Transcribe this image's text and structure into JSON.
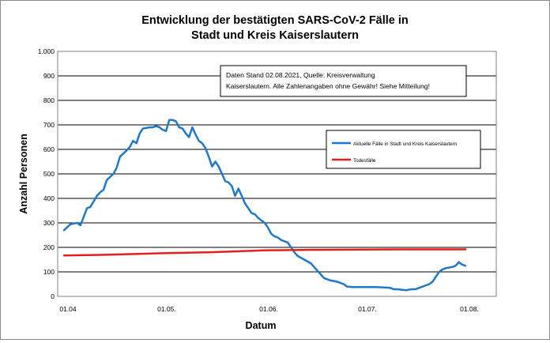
{
  "chart_data": {
    "type": "line",
    "title_lines": [
      "Entwicklung der bestätigten SARS-CoV-2 Fälle in",
      "Stadt und Kreis Kaiserslautern"
    ],
    "xlabel": "Datum",
    "ylabel": "Anzahl Personen",
    "x_start": "2021-04-01",
    "x_end": "2021-08-01",
    "x_ticks": [
      {
        "date": "2021-04-01",
        "label": "01.04"
      },
      {
        "date": "2021-05-01",
        "label": "01.05."
      },
      {
        "date": "2021-06-01",
        "label": "01.06."
      },
      {
        "date": "2021-07-01",
        "label": "01.07."
      },
      {
        "date": "2021-08-01",
        "label": "01.08."
      }
    ],
    "ylim": [
      0,
      1000
    ],
    "y_ticks": [
      {
        "value": 0,
        "label": "0"
      },
      {
        "value": 100,
        "label": "100"
      },
      {
        "value": 200,
        "label": "200"
      },
      {
        "value": 300,
        "label": "300"
      },
      {
        "value": 400,
        "label": "400"
      },
      {
        "value": 500,
        "label": "500"
      },
      {
        "value": 600,
        "label": "600"
      },
      {
        "value": 700,
        "label": "700"
      },
      {
        "value": 800,
        "label": "800"
      },
      {
        "value": 900,
        "label": "900"
      },
      {
        "value": 1000,
        "label": "1.000"
      }
    ],
    "grid": "horizontal",
    "legend_position": "right",
    "annotation_lines": [
      "Daten Stand 02.08.2021, Quelle: Kreisverwaltung",
      "Kaiserslautern. Alle Zahlenangaben ohne Gewähr! Siehe Mitteilung!"
    ],
    "series": [
      {
        "name": "Aktuelle Fälle in Stadt und Kreis Kaiserslautern",
        "color": "#1f78c8",
        "points": [
          [
            "2021-04-01",
            270
          ],
          [
            "2021-04-03",
            295
          ],
          [
            "2021-04-05",
            300
          ],
          [
            "2021-04-06",
            290
          ],
          [
            "2021-04-08",
            360
          ],
          [
            "2021-04-09",
            365
          ],
          [
            "2021-04-11",
            410
          ],
          [
            "2021-04-12",
            425
          ],
          [
            "2021-04-13",
            435
          ],
          [
            "2021-04-14",
            475
          ],
          [
            "2021-04-16",
            500
          ],
          [
            "2021-04-17",
            525
          ],
          [
            "2021-04-18",
            570
          ],
          [
            "2021-04-20",
            595
          ],
          [
            "2021-04-21",
            610
          ],
          [
            "2021-04-22",
            635
          ],
          [
            "2021-04-23",
            625
          ],
          [
            "2021-04-24",
            665
          ],
          [
            "2021-04-25",
            685
          ],
          [
            "2021-04-27",
            690
          ],
          [
            "2021-04-28",
            690
          ],
          [
            "2021-04-29",
            695
          ],
          [
            "2021-04-30",
            690
          ],
          [
            "2021-05-01",
            680
          ],
          [
            "2021-05-02",
            675
          ],
          [
            "2021-05-03",
            720
          ],
          [
            "2021-05-04",
            720
          ],
          [
            "2021-05-05",
            715
          ],
          [
            "2021-05-06",
            690
          ],
          [
            "2021-05-07",
            685
          ],
          [
            "2021-05-08",
            665
          ],
          [
            "2021-05-09",
            650
          ],
          [
            "2021-05-10",
            690
          ],
          [
            "2021-05-11",
            660
          ],
          [
            "2021-05-12",
            635
          ],
          [
            "2021-05-13",
            625
          ],
          [
            "2021-05-14",
            605
          ],
          [
            "2021-05-15",
            570
          ],
          [
            "2021-05-16",
            530
          ],
          [
            "2021-05-17",
            550
          ],
          [
            "2021-05-18",
            530
          ],
          [
            "2021-05-19",
            500
          ],
          [
            "2021-05-20",
            470
          ],
          [
            "2021-05-21",
            465
          ],
          [
            "2021-05-22",
            450
          ],
          [
            "2021-05-23",
            410
          ],
          [
            "2021-05-24",
            440
          ],
          [
            "2021-05-25",
            410
          ],
          [
            "2021-05-26",
            380
          ],
          [
            "2021-05-27",
            360
          ],
          [
            "2021-05-28",
            340
          ],
          [
            "2021-05-29",
            335
          ],
          [
            "2021-05-30",
            320
          ],
          [
            "2021-05-31",
            310
          ],
          [
            "2021-06-01",
            300
          ],
          [
            "2021-06-02",
            280
          ],
          [
            "2021-06-03",
            255
          ],
          [
            "2021-06-04",
            245
          ],
          [
            "2021-06-05",
            240
          ],
          [
            "2021-06-06",
            230
          ],
          [
            "2021-06-07",
            225
          ],
          [
            "2021-06-08",
            220
          ],
          [
            "2021-06-10",
            180
          ],
          [
            "2021-06-11",
            165
          ],
          [
            "2021-06-13",
            150
          ],
          [
            "2021-06-15",
            135
          ],
          [
            "2021-06-17",
            105
          ],
          [
            "2021-06-19",
            75
          ],
          [
            "2021-06-21",
            65
          ],
          [
            "2021-06-23",
            60
          ],
          [
            "2021-06-25",
            50
          ],
          [
            "2021-06-26",
            40
          ],
          [
            "2021-06-28",
            38
          ],
          [
            "2021-07-05",
            38
          ],
          [
            "2021-07-09",
            35
          ],
          [
            "2021-07-10",
            30
          ],
          [
            "2021-07-12",
            28
          ],
          [
            "2021-07-14",
            25
          ],
          [
            "2021-07-15",
            28
          ],
          [
            "2021-07-17",
            30
          ],
          [
            "2021-07-19",
            40
          ],
          [
            "2021-07-21",
            50
          ],
          [
            "2021-07-22",
            60
          ],
          [
            "2021-07-23",
            80
          ],
          [
            "2021-07-24",
            100
          ],
          [
            "2021-07-25",
            110
          ],
          [
            "2021-07-26",
            115
          ],
          [
            "2021-07-28",
            120
          ],
          [
            "2021-07-29",
            125
          ],
          [
            "2021-07-30",
            140
          ],
          [
            "2021-07-31",
            130
          ],
          [
            "2021-08-01",
            125
          ]
        ]
      },
      {
        "name": "Todesfälle",
        "color": "#e4201e",
        "points": [
          [
            "2021-04-01",
            167
          ],
          [
            "2021-04-15",
            170
          ],
          [
            "2021-05-01",
            176
          ],
          [
            "2021-05-15",
            180
          ],
          [
            "2021-06-01",
            188
          ],
          [
            "2021-06-15",
            190
          ],
          [
            "2021-07-01",
            191
          ],
          [
            "2021-07-15",
            192
          ],
          [
            "2021-08-01",
            192
          ]
        ]
      }
    ]
  }
}
